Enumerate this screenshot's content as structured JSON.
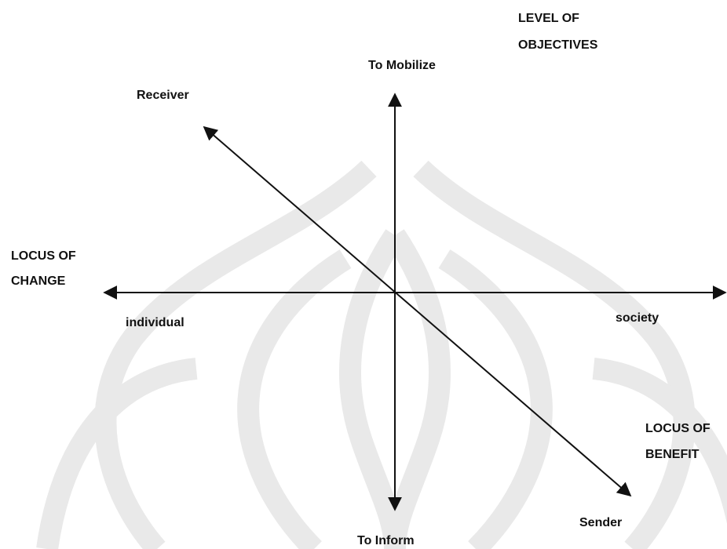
{
  "diagram": {
    "level_of_objectives": [
      "LEVEL OF",
      "OBJECTIVES"
    ],
    "top": "To Mobilize",
    "bottom": "To Inform",
    "upper_left": "Receiver",
    "lower_right": "Sender",
    "locus_of_change": [
      "LOCUS OF",
      "CHANGE"
    ],
    "left": "individual",
    "right": "society",
    "locus_of_benefit": [
      "LOCUS OF",
      "BENEFIT"
    ]
  }
}
